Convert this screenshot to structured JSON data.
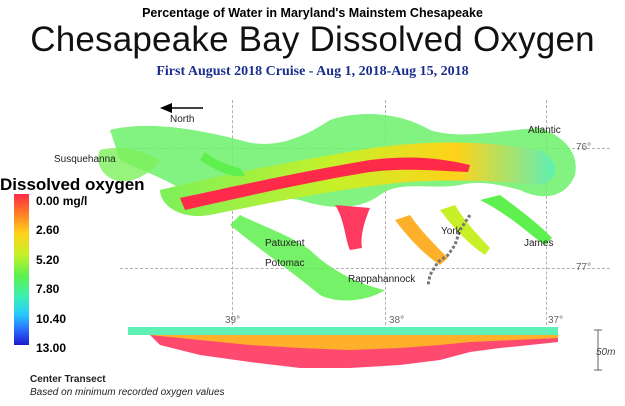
{
  "header": {
    "caption": "Percentage of Water in Maryland's Mainstem Chesapeake",
    "title": "Chesapeake Bay Dissolved Oxygen",
    "cruise": "First August 2018 Cruise - Aug 1, 2018-Aug 15, 2018"
  },
  "legend": {
    "title": "Dissolved oxygen",
    "ticks": [
      "0.00 mg/l",
      "2.60",
      "5.20",
      "7.80",
      "10.40",
      "13.00"
    ],
    "colors": [
      "#ff2a4a",
      "#ffd21a",
      "#5ef04e",
      "#3cf0b4",
      "#2a6cff",
      "#1f1acc"
    ]
  },
  "map": {
    "north_label": "North",
    "places": {
      "susquehanna": "Susquehanna",
      "atlantic": "Atlantic",
      "patuxent": "Patuxent",
      "potomac": "Potomac",
      "york": "York",
      "james": "James",
      "rappahannock": "Rappahannock"
    },
    "latitudes": [
      "76°",
      "77°"
    ],
    "longitudes": [
      "39°",
      "38°",
      "37°"
    ]
  },
  "transect": {
    "title": "Center Transect",
    "note": "Based on minimum recorded oxygen values",
    "depth_scale": "50m"
  }
}
